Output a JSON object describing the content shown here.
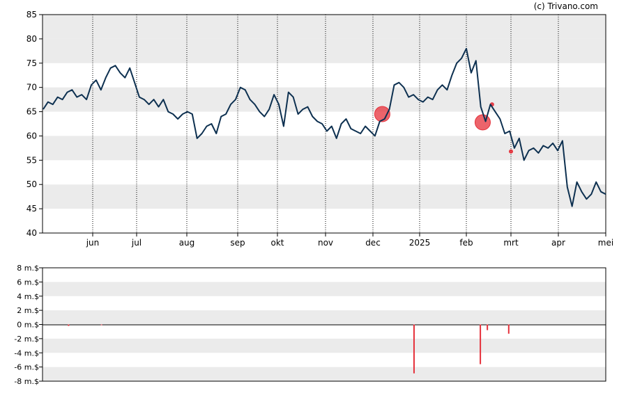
{
  "copyright": "(c) Trivano.com",
  "colors": {
    "line": "#0d3050",
    "band": "#ebebeb",
    "marker": "#e5303a",
    "bar": "#e5303a"
  },
  "chart_data": [
    {
      "type": "line",
      "title": "",
      "xlabel": "",
      "ylabel": "",
      "ylim": [
        40,
        85
      ],
      "yticks": [
        "85",
        "80",
        "75",
        "70",
        "65",
        "60",
        "55",
        "50",
        "45",
        "40"
      ],
      "x_labels": [
        "jun",
        "jul",
        "aug",
        "sep",
        "okt",
        "nov",
        "dec",
        "2025",
        "feb",
        "mrt",
        "apr",
        "mei"
      ],
      "grid": "alternating horizontal bands, dotted vertical lines at month starts",
      "series": [
        {
          "values": [
            65.5,
            67.0,
            66.5,
            68.0,
            67.5,
            69.0,
            69.5,
            68.0,
            68.5,
            67.5,
            70.5,
            71.5,
            69.5,
            72.0,
            74.0,
            74.5,
            73.0,
            72.0,
            74.0,
            71.0,
            68.0,
            67.5,
            66.5,
            67.5,
            66.0,
            67.5,
            65.0,
            64.5,
            63.5,
            64.5,
            65.0,
            64.5,
            59.5,
            60.5,
            62.0,
            62.5,
            60.5,
            64.0,
            64.5,
            66.5,
            67.5,
            70.0,
            69.5,
            67.5,
            66.5,
            65.0,
            64.0,
            65.5,
            68.5,
            66.5,
            62.0,
            69.0,
            68.0,
            64.5,
            65.5,
            66.0,
            64.0,
            63.0,
            62.5,
            61.0,
            62.0,
            59.5,
            62.5,
            63.5,
            61.5,
            61.0,
            60.5,
            62.0,
            61.0,
            60.0,
            63.0,
            63.5,
            65.5,
            70.5,
            71.0,
            70.0,
            68.0,
            68.5,
            67.5,
            67.0,
            68.0,
            67.5,
            69.5,
            70.5,
            69.5,
            72.5,
            75.0,
            76.0,
            78.0,
            73.0,
            75.5,
            66.0,
            63.0,
            66.5,
            65.0,
            63.5,
            60.5,
            61.0,
            57.5,
            59.5,
            55.0,
            57.0,
            57.5,
            56.5,
            58.0,
            57.5,
            58.5,
            57.0,
            59.0,
            49.5,
            45.5,
            50.5,
            48.5,
            47.0,
            48.0,
            50.5,
            48.5,
            48.0
          ]
        }
      ],
      "markers": [
        {
          "label": "2025",
          "offset": -0.8,
          "value": 64.5,
          "size": "large"
        },
        {
          "label": "feb",
          "offset": 0.35,
          "value": 62.8,
          "size": "large"
        },
        {
          "label": "feb",
          "offset": 0.55,
          "value": 66.5,
          "size": "small"
        },
        {
          "label": "mrt",
          "offset": 0.0,
          "value": 56.8,
          "size": "small"
        }
      ]
    },
    {
      "type": "bar",
      "title": "",
      "xlabel": "",
      "ylabel": "",
      "ylim": [
        -8,
        8
      ],
      "yticks": [
        "8 m.$",
        "6 m.$",
        "4 m.$",
        "2 m.$",
        "0 m.$",
        "-2 m.$",
        "-4 m.$",
        "-6 m.$",
        "-8 m.$"
      ],
      "unit": "m.$",
      "bars": [
        {
          "label": "jun",
          "offset": -0.55,
          "value": -0.2
        },
        {
          "label": "jun",
          "offset": 0.2,
          "value": -0.1
        },
        {
          "label": "2025",
          "offset": -0.12,
          "value": -6.9
        },
        {
          "label": "feb",
          "offset": 0.3,
          "value": -5.6
        },
        {
          "label": "feb",
          "offset": 0.45,
          "value": -0.8
        },
        {
          "label": "mrt",
          "offset": -0.05,
          "value": -1.3
        }
      ]
    }
  ]
}
